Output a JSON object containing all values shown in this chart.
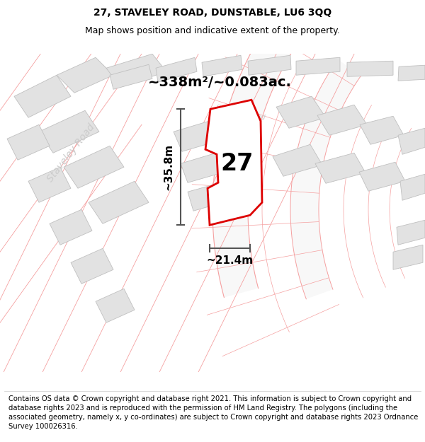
{
  "title": "27, STAVELEY ROAD, DUNSTABLE, LU6 3QQ",
  "subtitle": "Map shows position and indicative extent of the property.",
  "footer": "Contains OS data © Crown copyright and database right 2021. This information is subject to Crown copyright and database rights 2023 and is reproduced with the permission of HM Land Registry. The polygons (including the associated geometry, namely x, y co-ordinates) are subject to Crown copyright and database rights 2023 Ordnance Survey 100026316.",
  "area_label": "~338m²/~0.083ac.",
  "width_label": "~21.4m",
  "height_label": "~35.8m",
  "number_label": "27",
  "road_label_left": "Staveley Road",
  "road_label_top": "Staveley Road",
  "bg_color": "#ffffff",
  "plot_edge_color": "#dd0000",
  "building_fill": "#e0e0e0",
  "building_edge": "#c8c8c8",
  "road_line_color": "#f5a0a0",
  "road_fill_color": "#fafafa",
  "dim_line_color": "#555555",
  "title_fontsize": 10,
  "subtitle_fontsize": 9,
  "footer_fontsize": 7.2,
  "number_fontsize": 24,
  "area_fontsize": 14,
  "dim_fontsize": 11,
  "road_label_fontsize": 10
}
